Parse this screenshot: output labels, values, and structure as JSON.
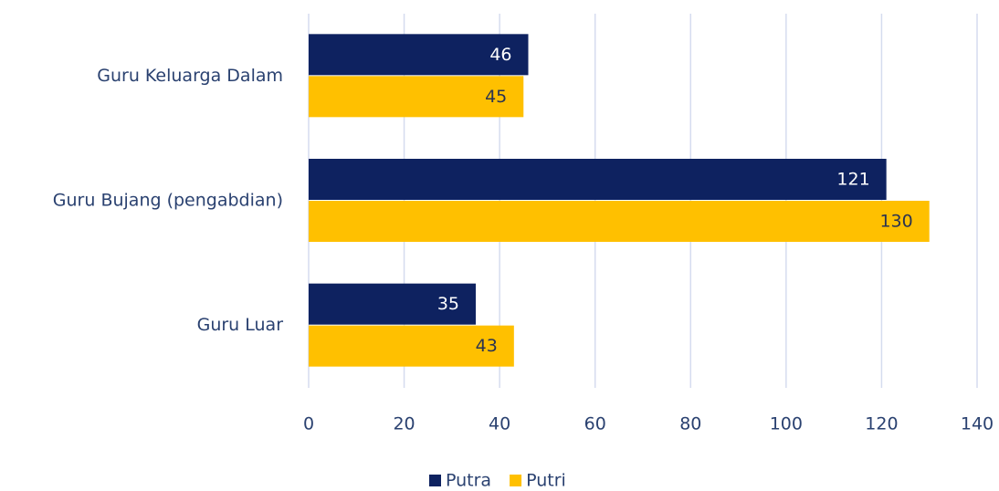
{
  "chart_data": {
    "type": "bar",
    "orientation": "horizontal",
    "categories": [
      "Guru Keluarga Dalam",
      "Guru Bujang (pengabdian)",
      "Guru Luar"
    ],
    "series": [
      {
        "name": "Putra",
        "color": "#0e2260",
        "values": [
          46,
          121,
          35
        ]
      },
      {
        "name": "Putri",
        "color": "#ffc000",
        "values": [
          45,
          130,
          43
        ]
      }
    ],
    "xlim": [
      0,
      140
    ],
    "xticks": [
      0,
      20,
      40,
      60,
      80,
      100,
      120,
      140
    ],
    "grid": true,
    "legend": "bottom"
  }
}
